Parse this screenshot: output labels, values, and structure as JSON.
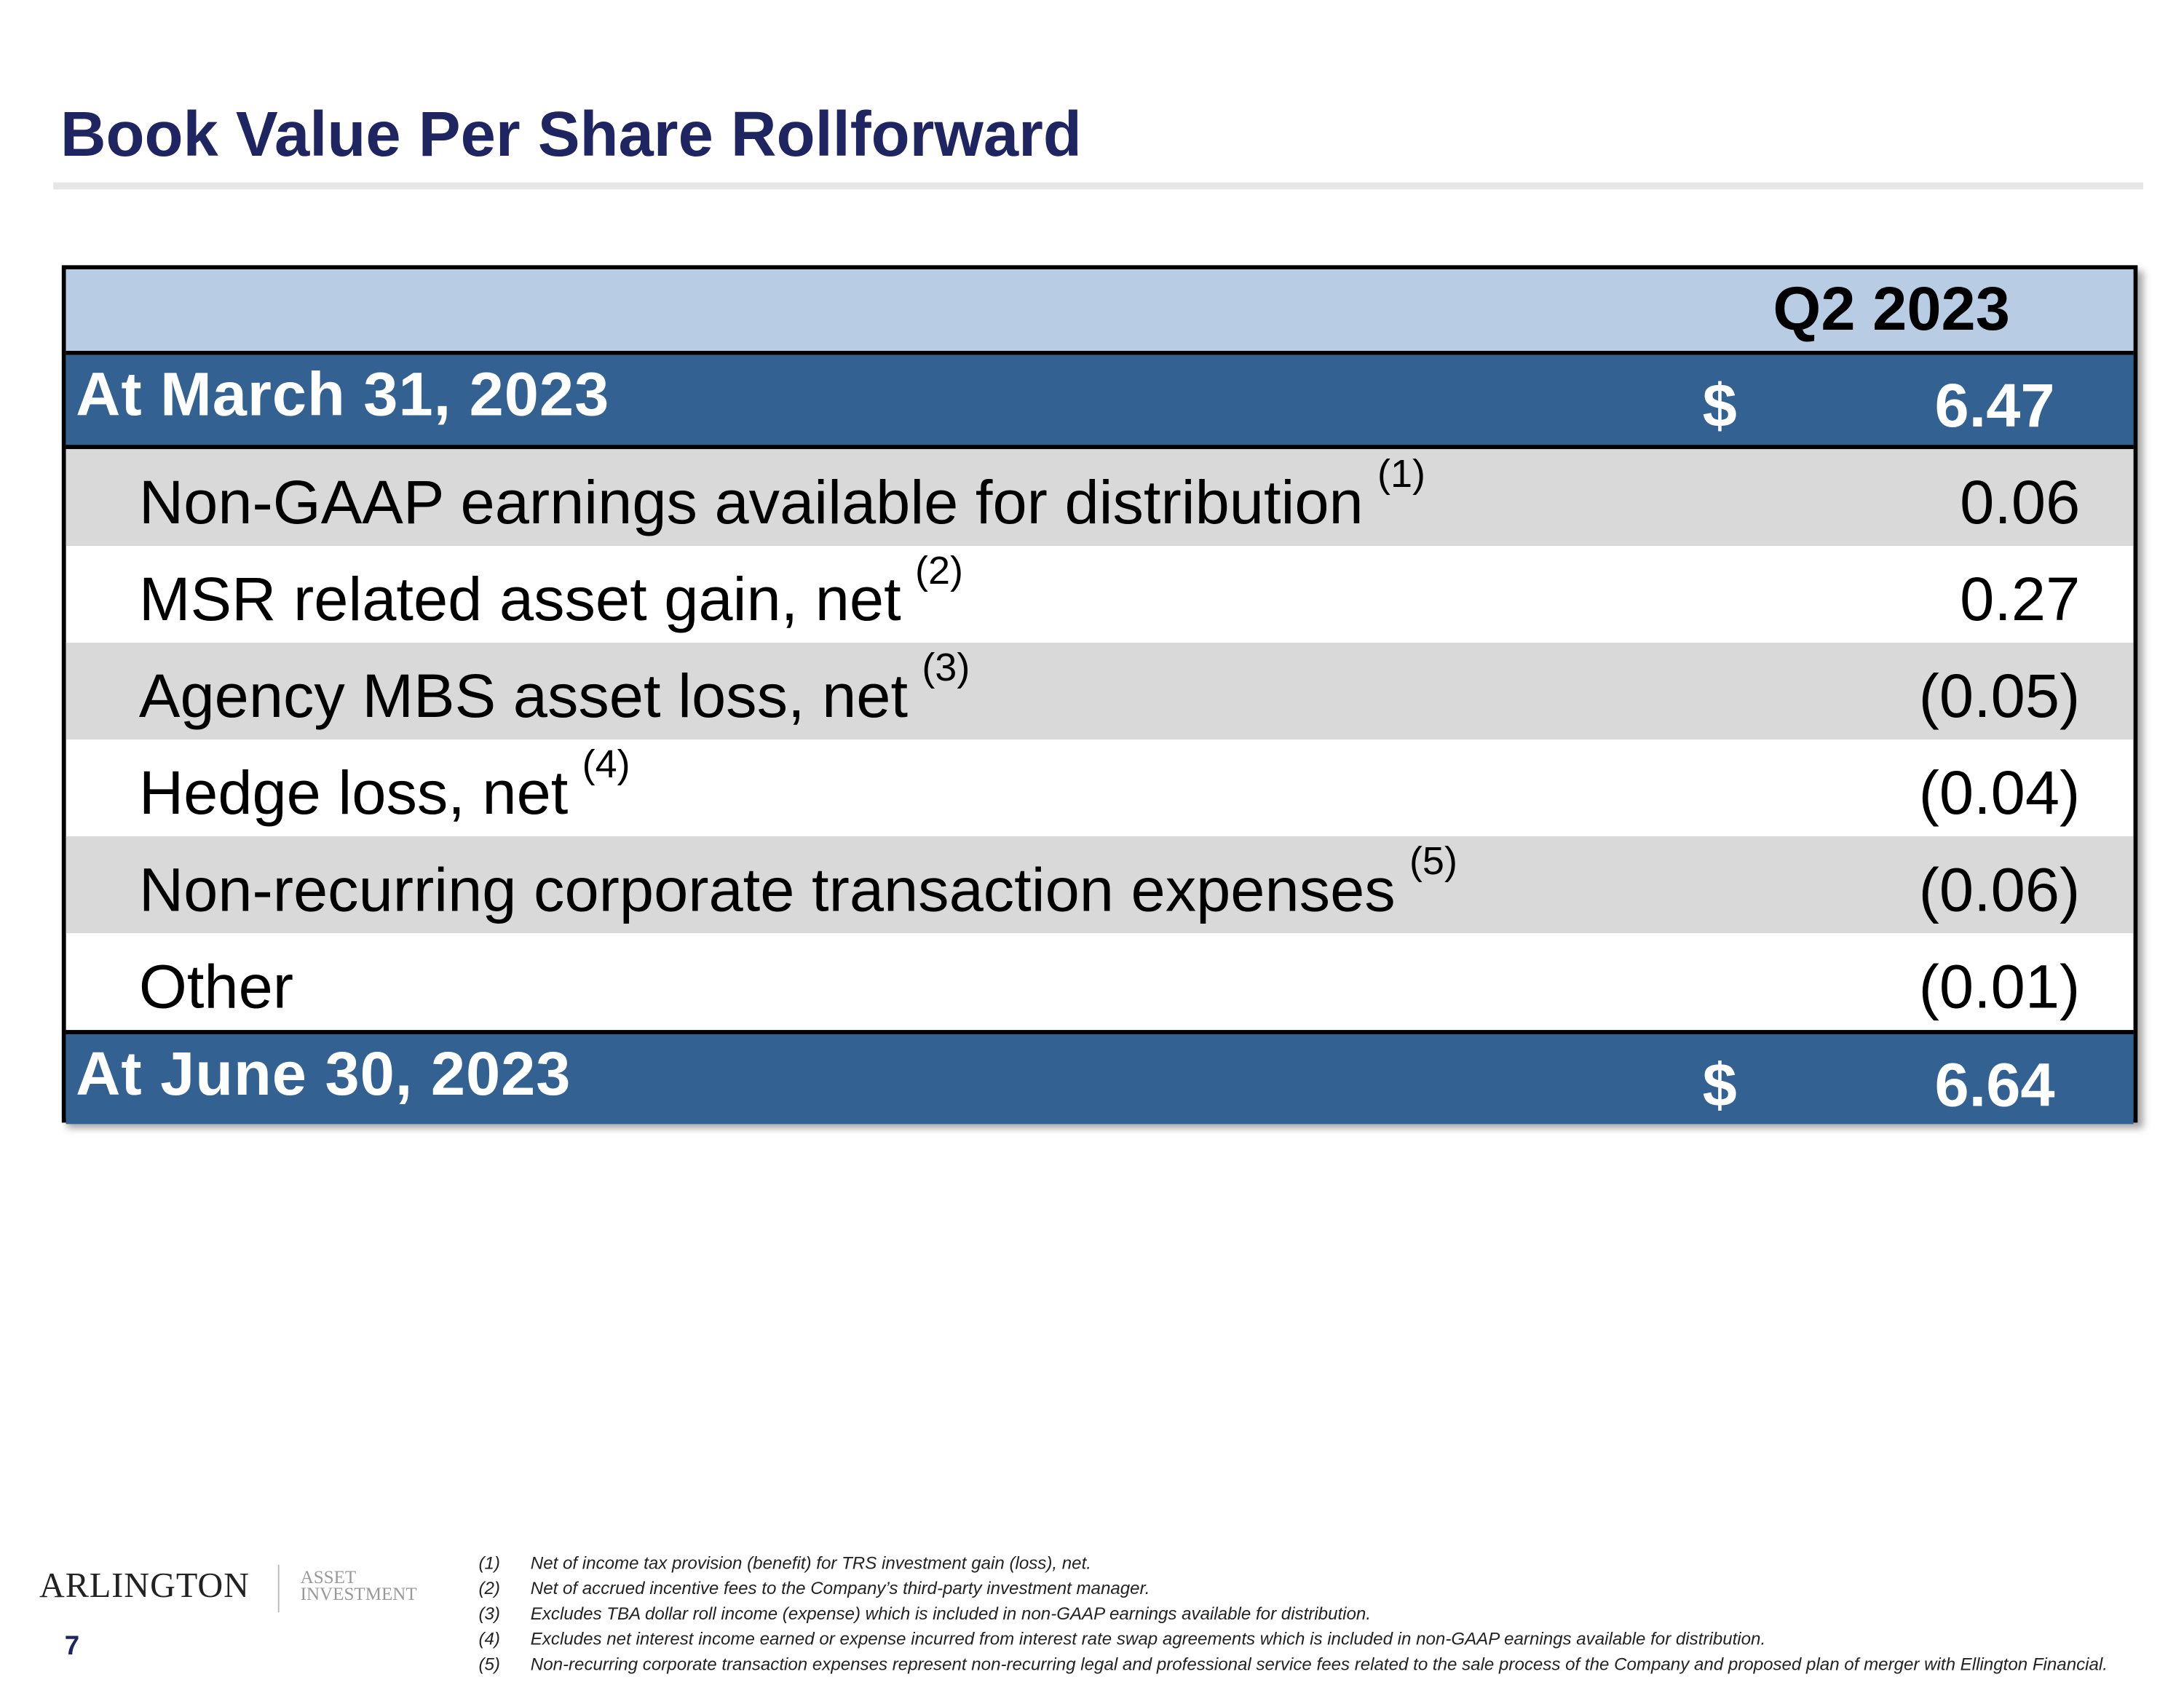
{
  "header": {
    "title": "Book Value Per Share Rollforward"
  },
  "table": {
    "column_header": "Q2 2023",
    "opening": {
      "label": "At March 31, 2023",
      "currency": "$",
      "value": "6.47"
    },
    "rows": [
      {
        "label": "Non-GAAP earnings available for distribution",
        "note": "(1)",
        "value": "0.06"
      },
      {
        "label": "MSR related asset gain, net",
        "note": "(2)",
        "value": "0.27"
      },
      {
        "label": "Agency MBS asset loss, net",
        "note": "(3)",
        "value": "(0.05)"
      },
      {
        "label": "Hedge loss, net",
        "note": "(4)",
        "value": "(0.04)"
      },
      {
        "label": "Non-recurring corporate transaction expenses",
        "note": "(5)",
        "value": "(0.06)"
      },
      {
        "label": "Other",
        "value": "(0.01)"
      }
    ],
    "closing": {
      "label": "At June 30, 2023",
      "currency": "$",
      "value": "6.64"
    }
  },
  "footer": {
    "logo": {
      "name": "ARLINGTON",
      "sub1": "ASSET",
      "sub2": "INVESTMENT"
    },
    "page_number": "7",
    "footnotes": [
      {
        "marker": "(1)",
        "text": "Net of income tax provision (benefit) for TRS investment gain (loss), net."
      },
      {
        "marker": "(2)",
        "text": "Net of accrued incentive fees to the Company’s third-party investment manager."
      },
      {
        "marker": "(3)",
        "text": "Excludes TBA dollar roll income (expense) which is included in non-GAAP earnings available for distribution."
      },
      {
        "marker": "(4)",
        "text": "Excludes net interest income earned or expense incurred from interest rate swap agreements which is included in non-GAAP earnings available for distribution."
      },
      {
        "marker": "(5)",
        "text": "Non-recurring corporate transaction expenses represent non-recurring legal and professional service fees related to the sale process of the Company and proposed plan of merger with Ellington Financial."
      }
    ]
  }
}
